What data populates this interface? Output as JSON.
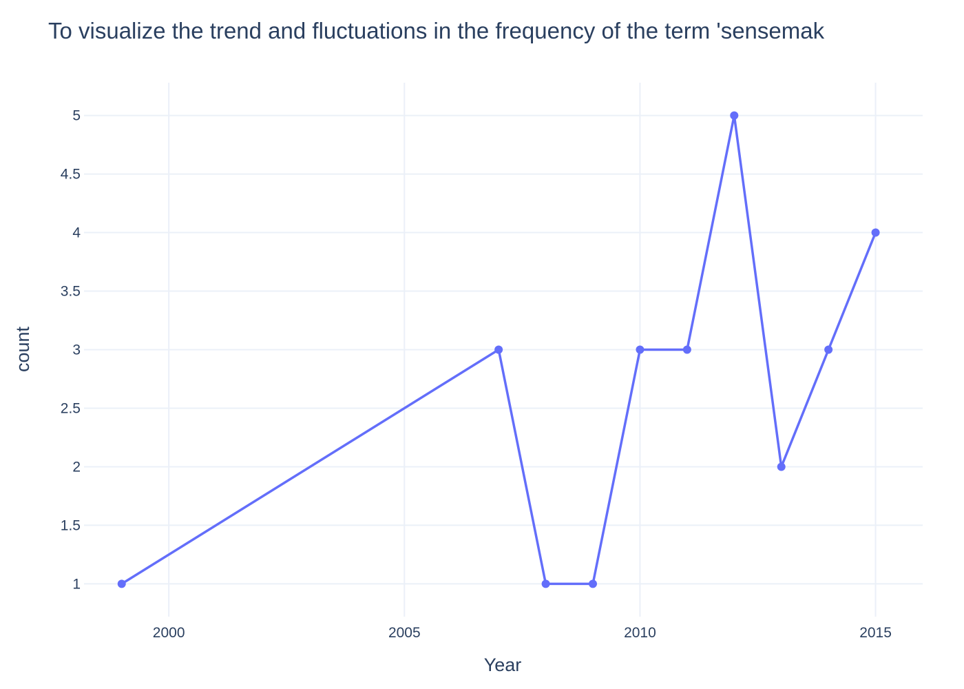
{
  "chart_data": {
    "type": "line",
    "title": "To visualize the trend and fluctuations in the frequency of the term 'sensemak",
    "xlabel": "Year",
    "ylabel": "count",
    "x": [
      1999,
      2007,
      2008,
      2009,
      2010,
      2011,
      2012,
      2013,
      2014,
      2015
    ],
    "series": [
      {
        "values": [
          1,
          3,
          1,
          1,
          3,
          3,
          5,
          2,
          3,
          4
        ]
      }
    ],
    "xlim": [
      1998.2,
      2016
    ],
    "ylim": [
      0.72,
      5.28
    ],
    "xticks": [
      2000,
      2005,
      2010,
      2015
    ],
    "yticks": [
      1,
      1.5,
      2,
      2.5,
      3,
      3.5,
      4,
      4.5,
      5
    ],
    "grid": true,
    "line_color": "#636efa",
    "grid_color": "#ebf0f8",
    "text_color": "#2a3f5f"
  }
}
